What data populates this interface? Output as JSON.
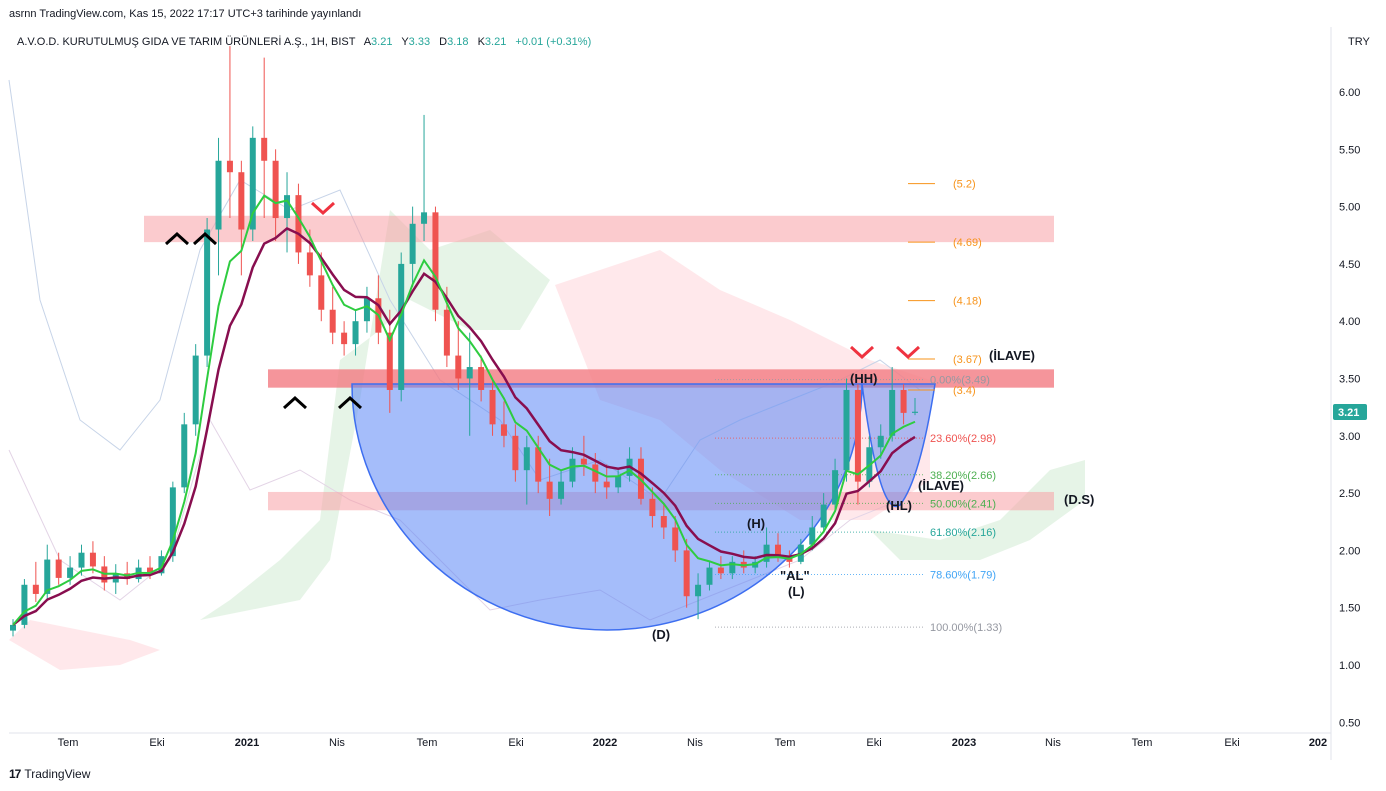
{
  "header": {
    "published": "asrnn TradingView.com, Kas 15, 2022 17:17 UTC+3 tarihinde yayınlandı"
  },
  "legend": {
    "symbol": "A.V.O.D. KURUTULMUŞ GIDA VE TARIM ÜRÜNLERİ A.Ş., 1H, BIST",
    "o_label": "A",
    "o_value": "3.21",
    "h_label": "Y",
    "h_value": "3.33",
    "l_label": "D",
    "l_value": "3.18",
    "c_label": "K",
    "c_value": "3.21",
    "change": "+0.01 (+0.31%)"
  },
  "colors": {
    "up": "#26a69a",
    "down": "#ef5350",
    "ema_fast": "#2ecc40",
    "ema_slow": "#880e4f",
    "bowl": "#5b86f5",
    "zone": "#f7a1a6",
    "zone_strong": "#f27a82",
    "cloud_green": "#c8e6c9",
    "cloud_red": "#ffcdd2",
    "fib_target": "#f7931a"
  },
  "price_axis": {
    "currency": "TRY",
    "ticks": [
      "6.00",
      "5.50",
      "5.00",
      "4.50",
      "4.00",
      "3.50",
      "3.00",
      "2.50",
      "2.00",
      "1.50",
      "1.00",
      "0.50"
    ],
    "last_price": "3.21"
  },
  "time_axis": {
    "labels": [
      "Tem",
      "Eki",
      "2021",
      "Nis",
      "Tem",
      "Eki",
      "2022",
      "Nis",
      "Tem",
      "Eki",
      "2023",
      "Nis",
      "Tem",
      "Eki",
      "202"
    ]
  },
  "chart_data": {
    "type": "candlestick",
    "ylim": [
      0.45,
      6.6
    ],
    "price_ticks": [
      6.0,
      5.5,
      5.0,
      4.5,
      4.0,
      3.5,
      3.0,
      2.5,
      2.0,
      1.5,
      1.0,
      0.5
    ],
    "zones": [
      {
        "low": 4.69,
        "high": 4.92
      },
      {
        "low": 3.42,
        "high": 3.58
      },
      {
        "low": 2.35,
        "high": 2.51
      }
    ],
    "fib_retracement": [
      {
        "label": "0.00%(3.49)",
        "price": 3.49
      },
      {
        "label": "23.60%(2.98)",
        "price": 2.98
      },
      {
        "label": "38.20%(2.66)",
        "price": 2.66
      },
      {
        "label": "50.00%(2.41)",
        "price": 2.41
      },
      {
        "label": "61.80%(2.16)",
        "price": 2.16
      },
      {
        "label": "78.60%(1.79)",
        "price": 1.79
      },
      {
        "label": "100.00%(1.33)",
        "price": 1.33
      }
    ],
    "fib_targets": [
      {
        "label": "(5.2)",
        "price": 5.2
      },
      {
        "label": "(4.69)",
        "price": 4.69
      },
      {
        "label": "(4.18)",
        "price": 4.18
      },
      {
        "label": "(3.67)",
        "price": 3.67
      },
      {
        "label": "(3.4)",
        "price": 3.4
      }
    ],
    "annotations": [
      {
        "text": "(İLAVE)",
        "key": "ilave_top"
      },
      {
        "text": "(HH)",
        "key": "hh"
      },
      {
        "text": "(İLAVE)",
        "key": "ilave_mid"
      },
      {
        "text": "(HL)",
        "key": "hl"
      },
      {
        "text": "(D.S)",
        "key": "ds"
      },
      {
        "text": "(H)",
        "key": "h"
      },
      {
        "text": "\"AL\"",
        "key": "al"
      },
      {
        "text": "(L)",
        "key": "l"
      },
      {
        "text": "(D)",
        "key": "d"
      }
    ],
    "candles": [
      [
        1.3,
        1.4,
        1.25,
        1.35
      ],
      [
        1.35,
        1.75,
        1.32,
        1.7
      ],
      [
        1.7,
        1.9,
        1.55,
        1.62
      ],
      [
        1.62,
        2.05,
        1.58,
        1.92
      ],
      [
        1.92,
        1.98,
        1.7,
        1.76
      ],
      [
        1.76,
        1.95,
        1.7,
        1.85
      ],
      [
        1.85,
        2.05,
        1.78,
        1.98
      ],
      [
        1.98,
        2.08,
        1.8,
        1.86
      ],
      [
        1.86,
        1.95,
        1.65,
        1.72
      ],
      [
        1.72,
        1.88,
        1.62,
        1.8
      ],
      [
        1.8,
        1.9,
        1.7,
        1.75
      ],
      [
        1.75,
        1.92,
        1.72,
        1.85
      ],
      [
        1.85,
        1.95,
        1.75,
        1.8
      ],
      [
        1.8,
        2.0,
        1.78,
        1.95
      ],
      [
        1.95,
        2.6,
        1.9,
        2.55
      ],
      [
        2.55,
        3.2,
        2.5,
        3.1
      ],
      [
        3.1,
        3.8,
        3.0,
        3.7
      ],
      [
        3.7,
        4.9,
        3.6,
        4.8
      ],
      [
        4.8,
        5.6,
        4.4,
        5.4
      ],
      [
        5.4,
        6.4,
        4.9,
        5.3
      ],
      [
        5.3,
        5.4,
        4.4,
        4.8
      ],
      [
        4.8,
        5.7,
        4.7,
        5.6
      ],
      [
        5.6,
        6.3,
        4.9,
        5.4
      ],
      [
        5.4,
        5.5,
        4.7,
        4.9
      ],
      [
        4.9,
        5.3,
        4.6,
        5.1
      ],
      [
        5.1,
        5.2,
        4.5,
        4.6
      ],
      [
        4.6,
        4.8,
        4.3,
        4.4
      ],
      [
        4.4,
        4.6,
        4.0,
        4.1
      ],
      [
        4.1,
        4.3,
        3.8,
        3.9
      ],
      [
        3.9,
        4.0,
        3.7,
        3.8
      ],
      [
        3.8,
        4.1,
        3.7,
        4.0
      ],
      [
        4.0,
        4.3,
        3.9,
        4.2
      ],
      [
        4.2,
        4.4,
        3.8,
        3.9
      ],
      [
        3.9,
        4.1,
        3.2,
        3.4
      ],
      [
        3.4,
        4.6,
        3.3,
        4.5
      ],
      [
        4.5,
        5.0,
        4.3,
        4.85
      ],
      [
        4.85,
        5.8,
        4.7,
        4.95
      ],
      [
        4.95,
        5.0,
        4.0,
        4.1
      ],
      [
        4.1,
        4.3,
        3.6,
        3.7
      ],
      [
        3.7,
        4.0,
        3.4,
        3.5
      ],
      [
        3.5,
        3.9,
        3.0,
        3.6
      ],
      [
        3.6,
        3.7,
        3.3,
        3.4
      ],
      [
        3.4,
        3.5,
        3.0,
        3.1
      ],
      [
        3.1,
        3.3,
        2.9,
        3.0
      ],
      [
        3.0,
        3.1,
        2.6,
        2.7
      ],
      [
        2.7,
        3.0,
        2.4,
        2.9
      ],
      [
        2.9,
        3.0,
        2.5,
        2.6
      ],
      [
        2.6,
        2.8,
        2.3,
        2.45
      ],
      [
        2.45,
        2.7,
        2.4,
        2.6
      ],
      [
        2.6,
        2.9,
        2.55,
        2.8
      ],
      [
        2.8,
        3.0,
        2.65,
        2.75
      ],
      [
        2.75,
        2.85,
        2.5,
        2.6
      ],
      [
        2.6,
        2.75,
        2.45,
        2.55
      ],
      [
        2.55,
        2.7,
        2.5,
        2.65
      ],
      [
        2.65,
        2.9,
        2.6,
        2.8
      ],
      [
        2.8,
        2.9,
        2.4,
        2.45
      ],
      [
        2.45,
        2.55,
        2.2,
        2.3
      ],
      [
        2.3,
        2.4,
        2.1,
        2.2
      ],
      [
        2.2,
        2.3,
        1.9,
        2.0
      ],
      [
        2.0,
        2.1,
        1.5,
        1.6
      ],
      [
        1.6,
        1.8,
        1.4,
        1.7
      ],
      [
        1.7,
        1.9,
        1.65,
        1.85
      ],
      [
        1.85,
        1.95,
        1.75,
        1.8
      ],
      [
        1.8,
        1.95,
        1.75,
        1.9
      ],
      [
        1.9,
        2.0,
        1.8,
        1.85
      ],
      [
        1.85,
        1.95,
        1.8,
        1.9
      ],
      [
        1.9,
        2.2,
        1.85,
        2.05
      ],
      [
        2.05,
        2.15,
        1.9,
        1.95
      ],
      [
        1.95,
        2.0,
        1.85,
        1.9
      ],
      [
        1.9,
        2.1,
        1.88,
        2.05
      ],
      [
        2.05,
        2.3,
        2.0,
        2.2
      ],
      [
        2.2,
        2.5,
        2.15,
        2.4
      ],
      [
        2.4,
        2.8,
        2.35,
        2.7
      ],
      [
        2.7,
        3.5,
        2.6,
        3.4
      ],
      [
        3.4,
        3.45,
        2.4,
        2.6
      ],
      [
        2.6,
        3.0,
        2.55,
        2.9
      ],
      [
        2.9,
        3.1,
        2.8,
        3.0
      ],
      [
        3.0,
        3.6,
        2.95,
        3.4
      ],
      [
        3.4,
        3.45,
        3.1,
        3.2
      ],
      [
        3.2,
        3.33,
        3.18,
        3.21
      ]
    ]
  }
}
